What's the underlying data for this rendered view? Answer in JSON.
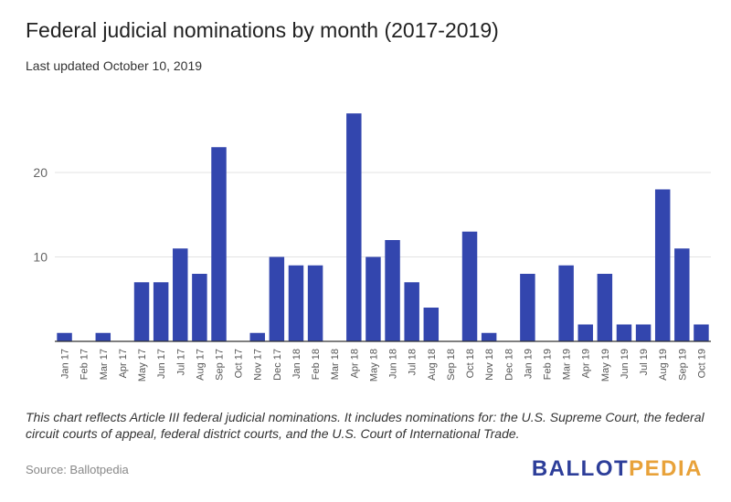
{
  "header": {
    "title": "Federal judicial nominations by month (2017-2019)",
    "subtitle": "Last updated October 10, 2019"
  },
  "footer": {
    "note": "This chart reflects Article III federal judicial nominations. It includes nominations for: the U.S. Supreme Court, the federal circuit courts of appeal, federal district courts, and the U.S. Court of International Trade.",
    "source": "Source: Ballotpedia",
    "logo_part1": "BALLOT",
    "logo_part2": "PEDIA"
  },
  "colors": {
    "bar": "#3346ae",
    "grid": "#e3e3e3",
    "axis": "#333333",
    "tick_text": "#555555",
    "logo_blue": "#2d3e99",
    "logo_orange": "#e8a23a"
  },
  "chart_data": {
    "type": "bar",
    "title": "Federal judicial nominations by month (2017-2019)",
    "subtitle": "Last updated October 10, 2019",
    "xlabel": "",
    "ylabel": "",
    "ylim": [
      0,
      28
    ],
    "yticks": [
      10,
      20
    ],
    "grid": true,
    "legend": "none",
    "categories": [
      "Jan 17",
      "Feb 17",
      "Mar 17",
      "Apr 17",
      "May 17",
      "Jun 17",
      "Jul 17",
      "Aug 17",
      "Sep 17",
      "Oct 17",
      "Nov 17",
      "Dec 17",
      "Jan 18",
      "Feb 18",
      "Mar 18",
      "Apr 18",
      "May 18",
      "Jun 18",
      "Jul 18",
      "Aug 18",
      "Sep 18",
      "Oct 18",
      "Nov 18",
      "Dec 18",
      "Jan 19",
      "Feb 19",
      "Mar 19",
      "Apr 19",
      "May 19",
      "Jun 19",
      "Jul 19",
      "Aug 19",
      "Sep 19",
      "Oct 19"
    ],
    "values": [
      1,
      0,
      1,
      0,
      7,
      7,
      11,
      8,
      23,
      0,
      1,
      10,
      9,
      9,
      0,
      27,
      10,
      12,
      7,
      4,
      0,
      13,
      1,
      0,
      8,
      0,
      9,
      2,
      8,
      2,
      2,
      18,
      11,
      2
    ]
  }
}
